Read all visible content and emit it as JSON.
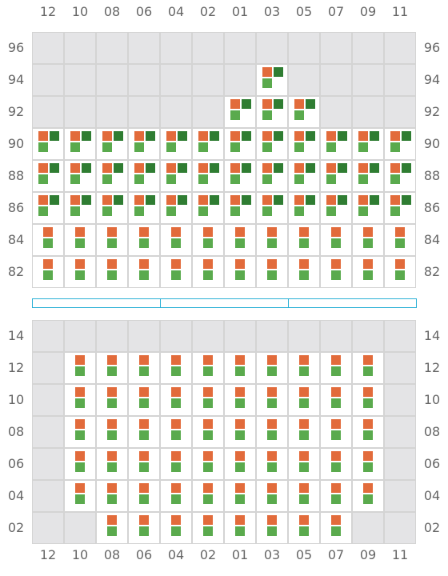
{
  "colors": {
    "orange": "#e26b3b",
    "dark_green": "#2f7d32",
    "light_green": "#5aaa4d",
    "empty": "#e4e4e6",
    "ruler": "#2ab0d6"
  },
  "column_labels": [
    "12",
    "10",
    "08",
    "06",
    "04",
    "02",
    "01",
    "03",
    "05",
    "07",
    "09",
    "11"
  ],
  "upper": {
    "rows": [
      {
        "label": "96",
        "cells": [
          "-",
          "-",
          "-",
          "-",
          "-",
          "-",
          "-",
          "-",
          "-",
          "-",
          "-",
          "-"
        ]
      },
      {
        "label": "94",
        "cells": [
          "-",
          "-",
          "-",
          "-",
          "-",
          "-",
          "-",
          "A",
          "-",
          "-",
          "-",
          "-"
        ]
      },
      {
        "label": "92",
        "cells": [
          "-",
          "-",
          "-",
          "-",
          "-",
          "-",
          "A",
          "A",
          "A",
          "-",
          "-",
          "-"
        ]
      },
      {
        "label": "90",
        "cells": [
          "A",
          "A",
          "A",
          "A",
          "A",
          "A",
          "A",
          "A",
          "A",
          "A",
          "A",
          "A"
        ]
      },
      {
        "label": "88",
        "cells": [
          "A",
          "A",
          "A",
          "A",
          "A",
          "A",
          "A",
          "A",
          "A",
          "A",
          "A",
          "A"
        ]
      },
      {
        "label": "86",
        "cells": [
          "A",
          "A",
          "A",
          "A",
          "A",
          "A",
          "A",
          "A",
          "A",
          "A",
          "A",
          "A"
        ]
      },
      {
        "label": "84",
        "cells": [
          "B",
          "B",
          "B",
          "B",
          "B",
          "B",
          "B",
          "B",
          "B",
          "B",
          "B",
          "B"
        ]
      },
      {
        "label": "82",
        "cells": [
          "B",
          "B",
          "B",
          "B",
          "B",
          "B",
          "B",
          "B",
          "B",
          "B",
          "B",
          "B"
        ]
      }
    ]
  },
  "lower": {
    "rows": [
      {
        "label": "14",
        "cells": [
          "-",
          "-",
          "-",
          "-",
          "-",
          "-",
          "-",
          "-",
          "-",
          "-",
          "-",
          "-"
        ]
      },
      {
        "label": "12",
        "cells": [
          "-",
          "B",
          "B",
          "B",
          "B",
          "B",
          "B",
          "B",
          "B",
          "B",
          "B",
          "-"
        ]
      },
      {
        "label": "10",
        "cells": [
          "-",
          "B",
          "B",
          "B",
          "B",
          "B",
          "B",
          "B",
          "B",
          "B",
          "B",
          "-"
        ]
      },
      {
        "label": "08",
        "cells": [
          "-",
          "B",
          "B",
          "B",
          "B",
          "B",
          "B",
          "B",
          "B",
          "B",
          "B",
          "-"
        ]
      },
      {
        "label": "06",
        "cells": [
          "-",
          "B",
          "B",
          "B",
          "B",
          "B",
          "B",
          "B",
          "B",
          "B",
          "B",
          "-"
        ]
      },
      {
        "label": "04",
        "cells": [
          "-",
          "B",
          "B",
          "B",
          "B",
          "B",
          "B",
          "B",
          "B",
          "B",
          "B",
          "-"
        ]
      },
      {
        "label": "02",
        "cells": [
          "-",
          "-",
          "B",
          "B",
          "B",
          "B",
          "B",
          "B",
          "B",
          "B",
          "-",
          "-"
        ]
      }
    ]
  }
}
